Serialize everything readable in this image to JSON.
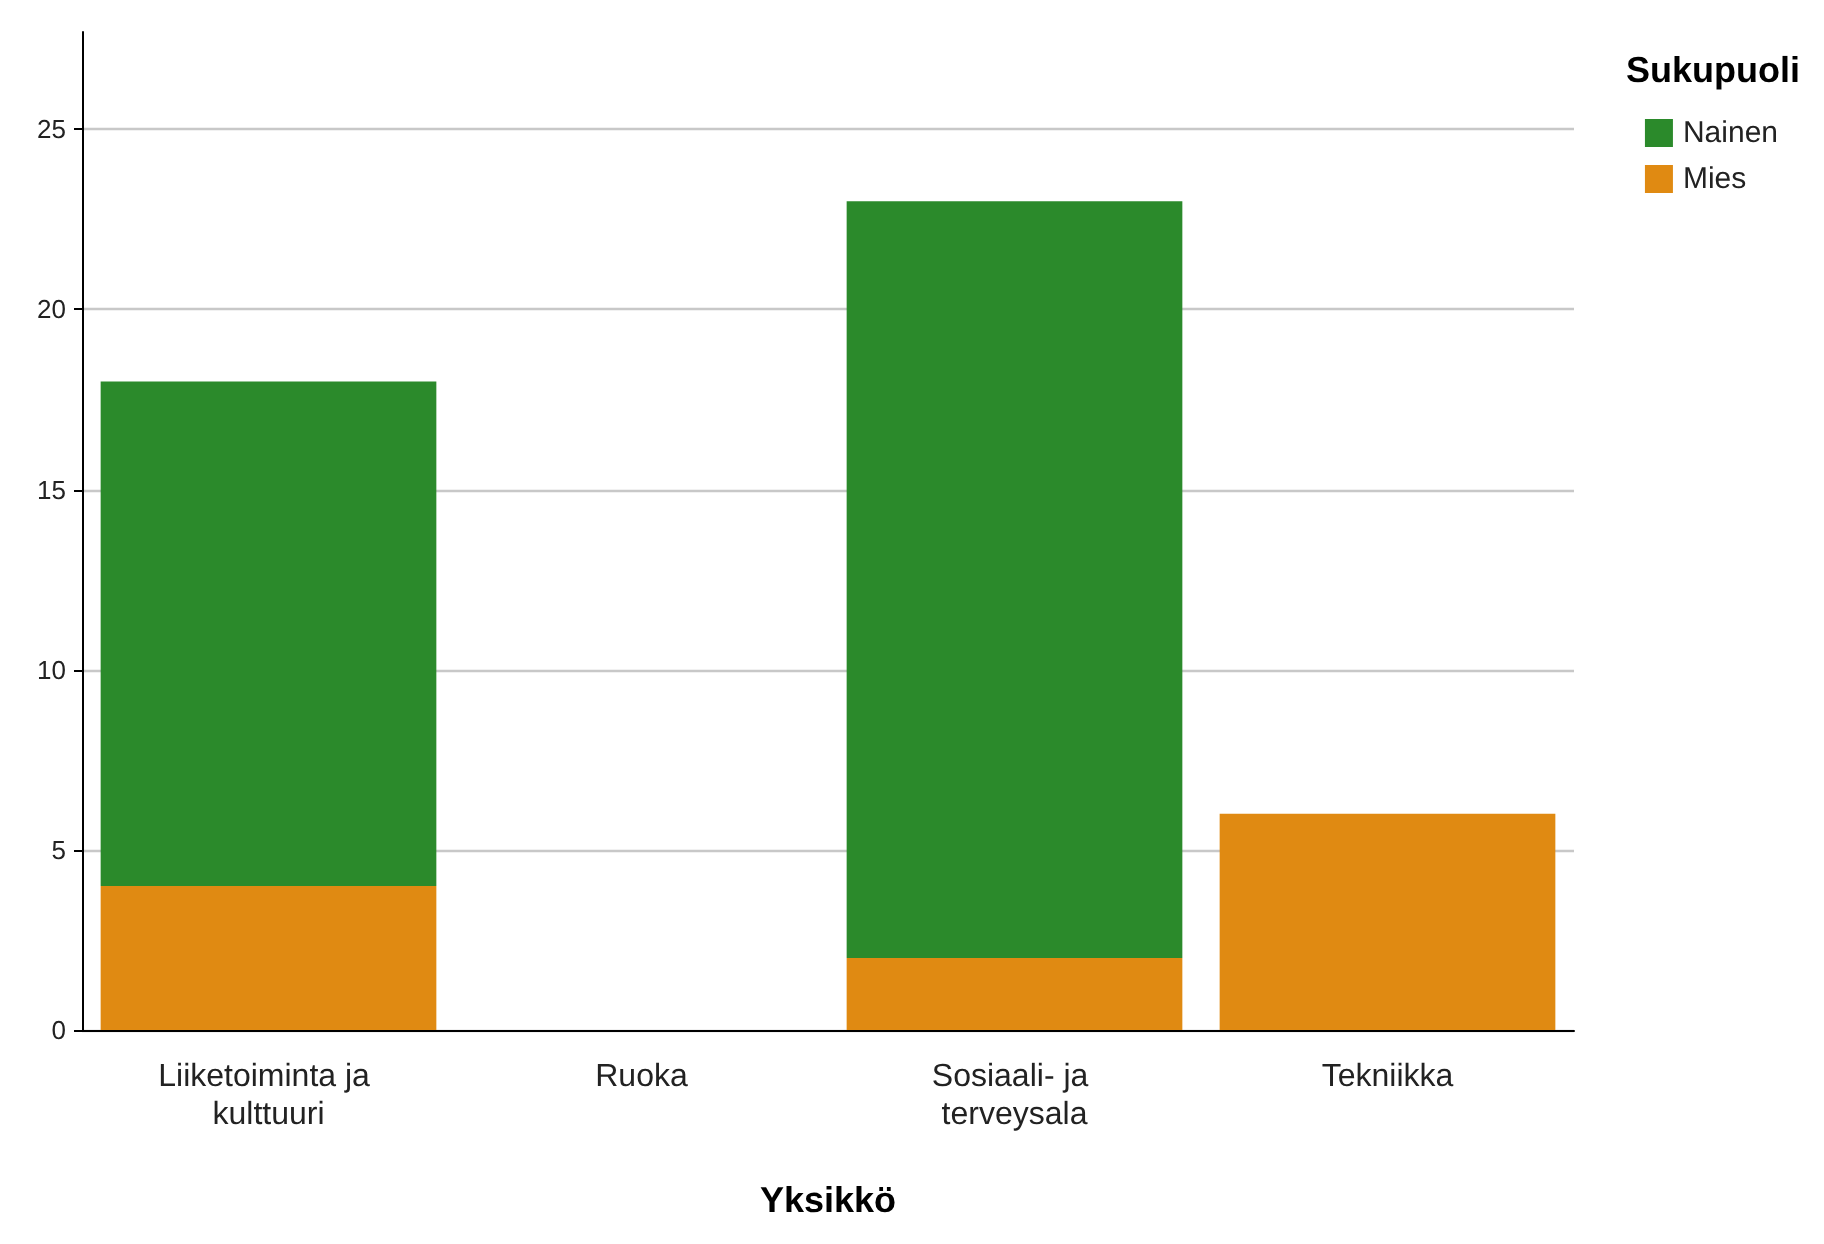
{
  "chart_data": {
    "type": "bar",
    "xlabel": "Yksikkö",
    "legend_title": "Sukupuoli",
    "categories": [
      "Liiketoiminta ja kulttuuri",
      "Ruoka",
      "Sosiaali- ja terveysala",
      "Tekniikka"
    ],
    "stacked": true,
    "series": [
      {
        "name": "Mies",
        "color": "#e08a12",
        "values": [
          4,
          0,
          2,
          6
        ]
      },
      {
        "name": "Nainen",
        "color": "#2b8a2b",
        "values": [
          14,
          0,
          21,
          0
        ]
      }
    ],
    "ylim": [
      0,
      27.7
    ],
    "yticks": [
      0,
      5,
      10,
      15,
      20,
      25
    ],
    "grid": "y",
    "legend": "top right"
  }
}
